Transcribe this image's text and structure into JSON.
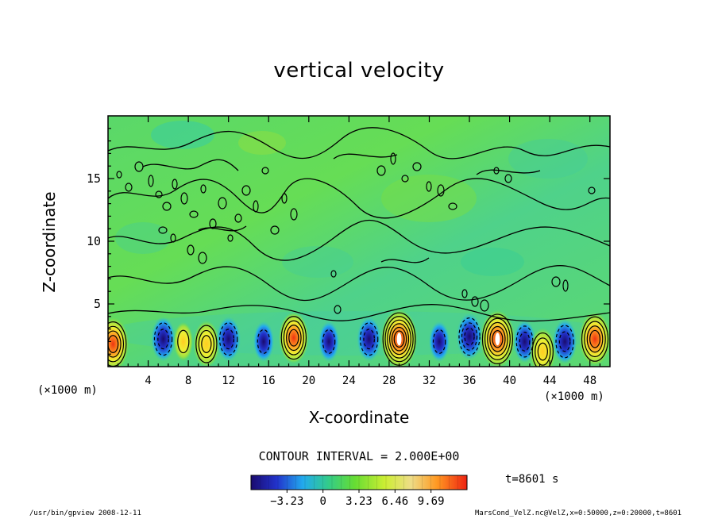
{
  "chart_data": {
    "type": "heatmap",
    "title": "vertical velocity",
    "xlabel": "X-coordinate",
    "ylabel": "Z-coordinate",
    "x_unit": "(×1000 m)",
    "y_unit": "(×1000 m)",
    "xlim": [
      0,
      50
    ],
    "ylim": [
      0,
      20
    ],
    "x_ticks": [
      4,
      8,
      12,
      16,
      20,
      24,
      28,
      32,
      36,
      40,
      44,
      48
    ],
    "y_ticks": [
      5,
      10,
      15
    ],
    "contour_interval": "CONTOUR INTERVAL = 2.000E+00",
    "colorbar": {
      "tick_labels": [
        "−3.23",
        "0",
        "3.23",
        "6.46",
        "9.69"
      ],
      "tick_values": [
        -3.23,
        0,
        3.23,
        6.46,
        9.69
      ],
      "range": [
        -6.46,
        12.92
      ],
      "colors": [
        "#1a0a6e",
        "#2233cc",
        "#22aaee",
        "#33cc66",
        "#66dd33",
        "#eeee33",
        "#ff9922",
        "#ee2211"
      ]
    },
    "cells": [
      {
        "x": 0.5,
        "z": 1.8,
        "w": 9
      },
      {
        "x": 5.5,
        "z": 2.2,
        "w": -5
      },
      {
        "x": 7.5,
        "z": 2.0,
        "w": 2
      },
      {
        "x": 9.8,
        "z": 1.8,
        "w": 6
      },
      {
        "x": 12.0,
        "z": 2.2,
        "w": -5
      },
      {
        "x": 15.5,
        "z": 2.0,
        "w": -3
      },
      {
        "x": 18.5,
        "z": 2.3,
        "w": 8
      },
      {
        "x": 22.0,
        "z": 2.0,
        "w": -3
      },
      {
        "x": 26.0,
        "z": 2.2,
        "w": -5
      },
      {
        "x": 29.0,
        "z": 2.2,
        "w": 12
      },
      {
        "x": 33.0,
        "z": 2.0,
        "w": -3
      },
      {
        "x": 36.0,
        "z": 2.4,
        "w": -6
      },
      {
        "x": 38.8,
        "z": 2.2,
        "w": 11
      },
      {
        "x": 41.5,
        "z": 2.0,
        "w": -4
      },
      {
        "x": 43.3,
        "z": 1.2,
        "w": 6
      },
      {
        "x": 45.5,
        "z": 2.0,
        "w": -5
      },
      {
        "x": 48.5,
        "z": 2.2,
        "w": 9
      }
    ]
  },
  "labels": {
    "time": "t=8601 s",
    "footer_left": "/usr/bin/gpview   2008-12-11",
    "footer_right": "MarsCond_VelZ.nc@VelZ,x=0:50000,z=0:20000,t=8601"
  }
}
